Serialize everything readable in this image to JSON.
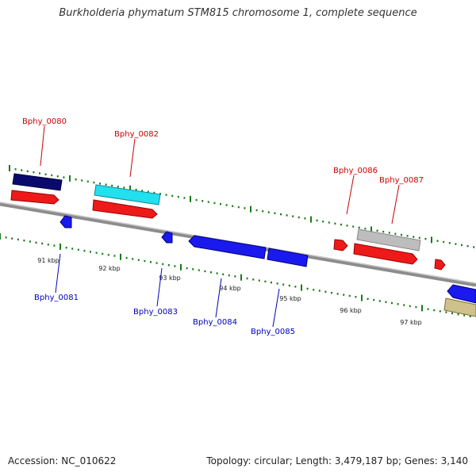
{
  "title": "Burkholderia phymatum STM815 chromosome 1, complete sequence",
  "footer": {
    "accession": "Accession: NC_010622",
    "summary": "Topology: circular; Length: 3,479,187 bp; Genes: 3,140"
  },
  "colors": {
    "backbone": "#8c8c8c",
    "tick": "#1a7a1a",
    "forward_label": "#cc0000",
    "reverse_label": "#0000bb",
    "scale_text": "#222222"
  },
  "scale": {
    "labels": [
      "91 kbp",
      "92 kbp",
      "93 kbp",
      "94 kbp",
      "95 kbp",
      "96 kbp",
      "97 kbp"
    ]
  },
  "genes": [
    {
      "id": "Bphy_0080",
      "strand": "forward",
      "label": "Bphy_0080",
      "color": "#0a0a6e"
    },
    {
      "id": "Bphy_0081",
      "strand": "reverse",
      "label": "Bphy_0081",
      "color": "#1a1aee"
    },
    {
      "id": "Bphy_0082",
      "strand": "forward",
      "label": "Bphy_0082",
      "color": "#22e0ee"
    },
    {
      "id": "Bphy_0083",
      "strand": "reverse",
      "label": "Bphy_0083",
      "color": "#1a1aee"
    },
    {
      "id": "Bphy_0084",
      "strand": "reverse",
      "label": "Bphy_0084",
      "color": "#1a1aee"
    },
    {
      "id": "Bphy_0085",
      "strand": "reverse",
      "label": "Bphy_0085",
      "color": "#1a1aee"
    },
    {
      "id": "Bphy_0086",
      "strand": "forward",
      "label": "Bphy_0086",
      "color": "#ee1a1a"
    },
    {
      "id": "Bphy_0087",
      "strand": "forward",
      "label": "Bphy_0087",
      "color": "#bdbdbd"
    }
  ]
}
